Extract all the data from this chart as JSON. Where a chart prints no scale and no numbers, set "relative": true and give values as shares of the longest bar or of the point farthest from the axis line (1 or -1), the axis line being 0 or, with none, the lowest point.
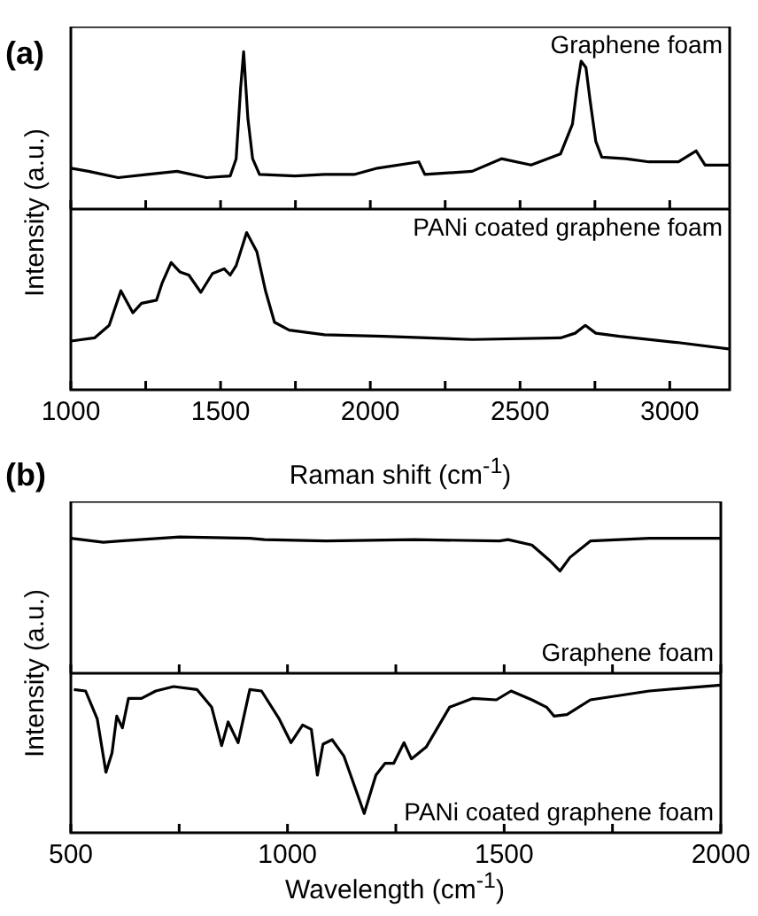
{
  "chart_data": [
    {
      "type": "line",
      "annotations": [
        "(a)"
      ],
      "relative": true,
      "xlim": [
        1000,
        3200
      ],
      "xticks": [
        1000,
        {
          "value": 1250,
          "label": null
        },
        1500,
        {
          "value": 1750,
          "label": null
        },
        2000,
        {
          "value": 2250,
          "label": null
        },
        2500,
        {
          "value": 2750,
          "label": null
        },
        3000
      ],
      "tick_labels": false,
      "x": [
        1000,
        1059,
        1158,
        1256,
        1355,
        1453,
        1532,
        1552,
        1567,
        1577,
        1591,
        1607,
        1630,
        1749,
        1847,
        1946,
        2024,
        2162,
        2182,
        2340,
        2438,
        2537,
        2635,
        2675,
        2690,
        2704,
        2720,
        2734,
        2753,
        2773,
        2852,
        2931,
        3029,
        3088,
        3118,
        3197
      ],
      "series": [
        {
          "name": "Graphene foam",
          "color": "#000000",
          "values": [
            0.26,
            0.24,
            0.2,
            0.22,
            0.24,
            0.2,
            0.21,
            0.32,
            0.77,
            1,
            0.58,
            0.32,
            0.22,
            0.21,
            0.22,
            0.22,
            0.26,
            0.3,
            0.22,
            0.24,
            0.32,
            0.28,
            0.35,
            0.54,
            0.77,
            0.94,
            0.9,
            0.69,
            0.43,
            0.33,
            0.32,
            0.3,
            0.3,
            0.37,
            0.28,
            0.28
          ]
        }
      ]
    },
    {
      "type": "line",
      "xlabel": "Raman shift (cm$^{-1}$)",
      "ylabel": "Intensity (a.u.)",
      "relative": true,
      "xlim": [
        1000,
        3200
      ],
      "xticks": [
        1000,
        {
          "value": 1250,
          "label": null
        },
        1500,
        {
          "value": 1750,
          "label": null
        },
        2000,
        {
          "value": 2250,
          "label": null
        },
        2500,
        {
          "value": 2750,
          "label": null
        },
        3000
      ],
      "tick_labels": "x",
      "x": [
        1000,
        1079,
        1128,
        1167,
        1207,
        1236,
        1286,
        1305,
        1335,
        1364,
        1394,
        1434,
        1473,
        1512,
        1532,
        1552,
        1587,
        1621,
        1650,
        1680,
        1729,
        1847,
        2044,
        2340,
        2635,
        2684,
        2718,
        2753,
        2832,
        3029,
        3197
      ],
      "series": [
        {
          "name": "PANi coated graphene foam",
          "color": "#000000",
          "values": [
            0.31,
            0.33,
            0.41,
            0.63,
            0.49,
            0.55,
            0.57,
            0.68,
            0.81,
            0.75,
            0.73,
            0.62,
            0.74,
            0.77,
            0.73,
            0.79,
            1,
            0.88,
            0.63,
            0.43,
            0.38,
            0.35,
            0.34,
            0.32,
            0.33,
            0.36,
            0.41,
            0.36,
            0.34,
            0.3,
            0.26
          ]
        }
      ]
    },
    {
      "type": "line",
      "annotations": [
        "(b)"
      ],
      "relative": true,
      "xlim": [
        500,
        2000
      ],
      "xticks": [
        500,
        {
          "value": 750,
          "label": null
        },
        1000,
        {
          "value": 1250,
          "label": null
        },
        1500,
        {
          "value": 1750,
          "label": null
        },
        2000
      ],
      "tick_labels": false,
      "x": [
        500,
        575,
        615,
        751,
        913,
        947,
        1089,
        1293,
        1489,
        1509,
        1564,
        1604,
        1629,
        1652,
        1699,
        1835,
        2000
      ],
      "series": [
        {
          "name": "Graphene foam",
          "color": "#000000",
          "values": [
            0.99,
            0.96,
            0.97,
            1,
            0.99,
            0.98,
            0.97,
            0.98,
            0.97,
            0.98,
            0.94,
            0.83,
            0.75,
            0.85,
            0.97,
            0.99,
            0.99
          ]
        }
      ]
    },
    {
      "type": "line",
      "xlabel": "Wavelength (cm$^{-1}$)",
      "ylabel": "Intensity (a.u.)",
      "relative": true,
      "xlim": [
        500,
        2000
      ],
      "xticks": [
        500,
        {
          "value": 750,
          "label": null
        },
        1000,
        {
          "value": 1250,
          "label": null
        },
        1500,
        {
          "value": 1750,
          "label": null
        },
        2000
      ],
      "tick_labels": "x",
      "x": [
        507,
        534,
        561,
        581,
        595,
        606,
        619,
        633,
        663,
        696,
        737,
        791,
        825,
        848,
        863,
        886,
        913,
        940,
        981,
        1008,
        1035,
        1055,
        1069,
        1082,
        1103,
        1130,
        1177,
        1204,
        1225,
        1245,
        1269,
        1286,
        1320,
        1374,
        1428,
        1482,
        1516,
        1564,
        1598,
        1615,
        1645,
        1699,
        1835,
        2000
      ],
      "series": [
        {
          "name": "PANi coated graphene foam",
          "color": "#000000",
          "values": [
            0.97,
            0.96,
            0.77,
            0.41,
            0.54,
            0.79,
            0.71,
            0.91,
            0.91,
            0.96,
            0.99,
            0.97,
            0.85,
            0.59,
            0.75,
            0.61,
            0.97,
            0.96,
            0.77,
            0.61,
            0.73,
            0.7,
            0.39,
            0.6,
            0.63,
            0.52,
            0.13,
            0.39,
            0.47,
            0.47,
            0.61,
            0.5,
            0.58,
            0.85,
            0.91,
            0.9,
            0.96,
            0.9,
            0.85,
            0.79,
            0.8,
            0.9,
            0.96,
            1
          ]
        }
      ]
    }
  ]
}
